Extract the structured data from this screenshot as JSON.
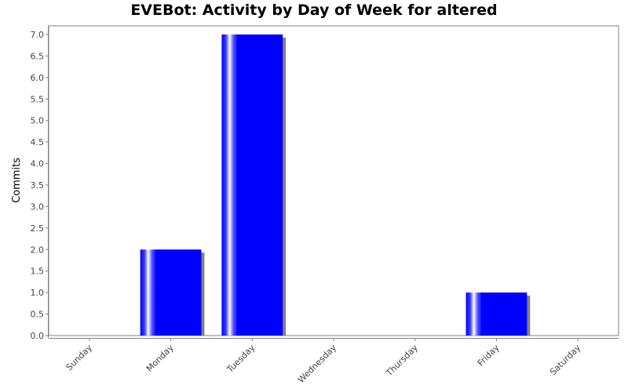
{
  "chart_data": {
    "type": "bar",
    "title": "EVEBot: Activity by Day of Week for altered",
    "xlabel": "",
    "ylabel": "Commits",
    "categories": [
      "Sunday",
      "Monday",
      "Tuesday",
      "Wednesday",
      "Thursday",
      "Friday",
      "Saturday"
    ],
    "values": [
      0,
      2,
      7,
      0,
      0,
      1,
      0
    ],
    "ylim": [
      0,
      7.2
    ],
    "yticks": [
      "0.0",
      "0.5",
      "1.0",
      "1.5",
      "2.0",
      "2.5",
      "3.0",
      "3.5",
      "4.0",
      "4.5",
      "5.0",
      "5.5",
      "6.0",
      "6.5",
      "7.0"
    ],
    "grid": false,
    "legend": "none",
    "colors": {
      "bar": "#0000ff",
      "bar_shadow": "#808080",
      "axis": "#808080",
      "tick_text": "#444444"
    }
  }
}
